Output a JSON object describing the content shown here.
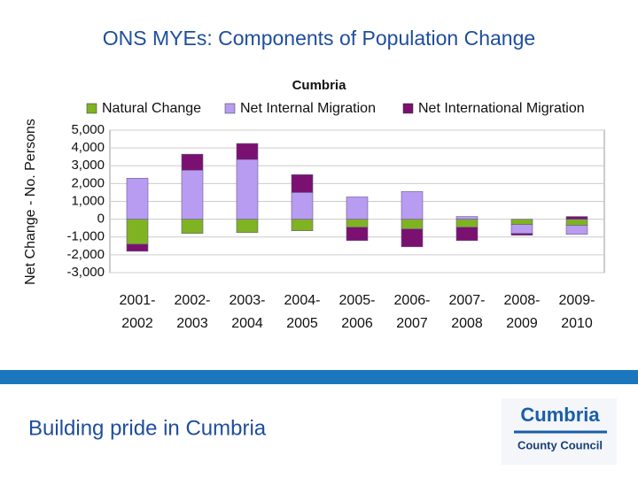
{
  "slide": {
    "title": "ONS MYEs: Components of Population Change",
    "footer": "Building pride in Cumbria",
    "logo": {
      "name": "Cumbria",
      "subtitle": "County Council"
    }
  },
  "chart_data": {
    "type": "bar",
    "stacked": true,
    "title": "Cumbria",
    "y_label": "Net Change - No. Persons",
    "categories": [
      "2001-\n2002",
      "2002-\n2003",
      "2003-\n2004",
      "2004-\n2005",
      "2005-\n2006",
      "2006-\n2007",
      "2007-\n2008",
      "2008-\n2009",
      "2009-\n2010"
    ],
    "series": [
      {
        "name": "Natural Change",
        "color": "#7fb321",
        "values": [
          -1400,
          -800,
          -750,
          -650,
          -450,
          -550,
          -450,
          -300,
          -350
        ]
      },
      {
        "name": "Net Internal Migration",
        "color": "#b89cf2",
        "values": [
          2300,
          2750,
          3350,
          1500,
          1250,
          1550,
          150,
          -500,
          -500
        ]
      },
      {
        "name": "Net International Migration",
        "color": "#7a1170",
        "values": [
          -400,
          900,
          900,
          1000,
          -750,
          -1000,
          -750,
          -100,
          150
        ]
      }
    ],
    "ylim": [
      -3000,
      5000
    ],
    "yticks": [
      {
        "value": -3000,
        "label": "-3,000"
      },
      {
        "value": -2000,
        "label": "-2,000"
      },
      {
        "value": -1000,
        "label": "-1,000"
      },
      0,
      {
        "value": 1000,
        "label": "1,000"
      },
      {
        "value": 2000,
        "label": "2,000"
      },
      {
        "value": 3000,
        "label": "3,000"
      },
      {
        "value": 4000,
        "label": "4,000"
      },
      {
        "value": 5000,
        "label": "5,000"
      }
    ],
    "grid": true,
    "legend": "top"
  }
}
